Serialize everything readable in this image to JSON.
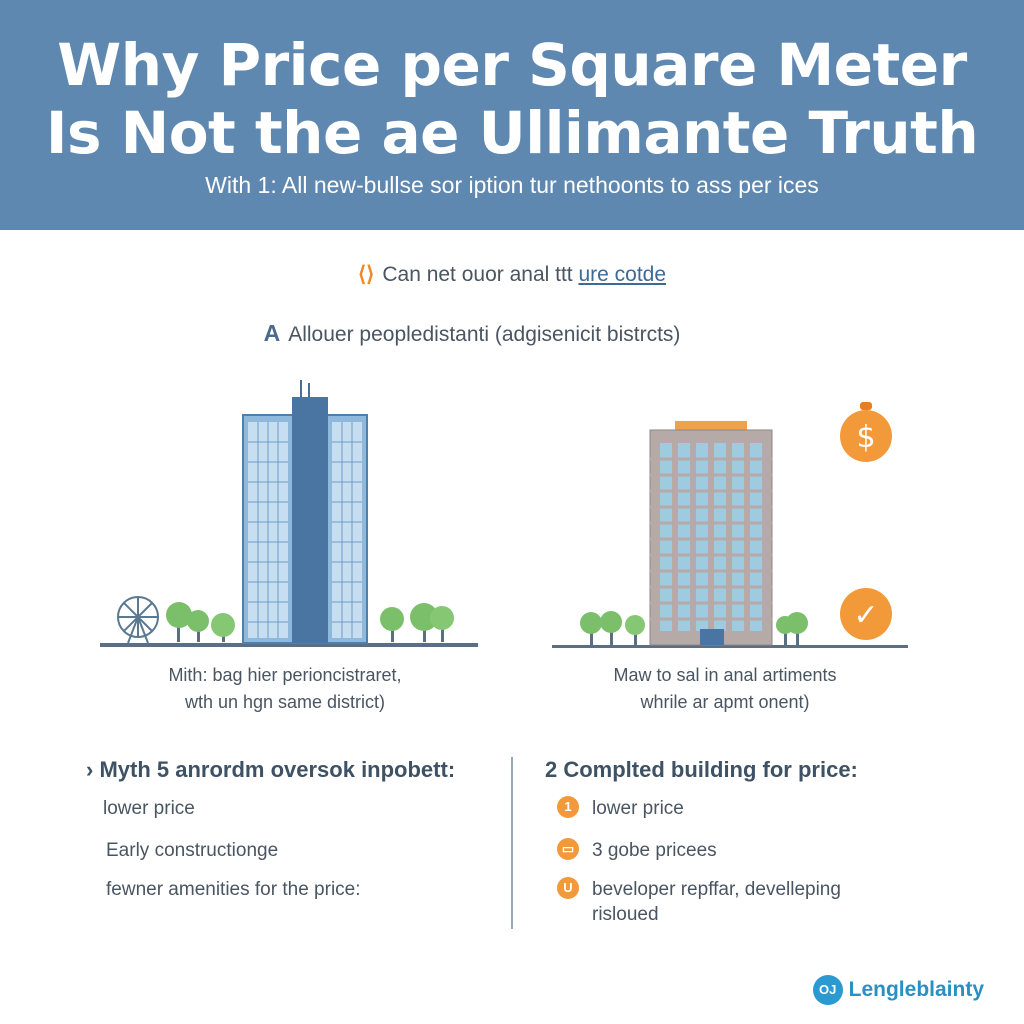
{
  "header": {
    "title_line1": "Why Price per Square Meter",
    "title_line2": "Is Not the ae Ullimante Truth",
    "subtitle": "With 1: All new-bullse sor iption tur nethoonts to ass per ices"
  },
  "notes": {
    "note1_icon": "⟨⟩",
    "note1_text": "Can net ouor anal ttt ",
    "note1_link": "ure cotde",
    "note2_lead": "A",
    "note2_text": "Allouer peopledistanti (adgisenicit bistrcts)"
  },
  "captions": {
    "left_line1": "Mith: bag hier perioncistraret,",
    "left_line2": "wth un hgn same district)",
    "right_line1": "Maw to sal in anal artiments",
    "right_line2": "whrile ar apmt onent)"
  },
  "left_column": {
    "title": "› Myth 5 anrordm oversok inpobett:",
    "items": [
      "lower price",
      "Early constructionge",
      "fewner amenities for the price:"
    ]
  },
  "right_column": {
    "title": "2 Complted building for price:",
    "items": [
      {
        "badge": "1",
        "text": "lower price"
      },
      {
        "badge": "▭",
        "text": "3 gobe pricees"
      },
      {
        "badge": "U",
        "text_line1": "beveloper repffar, develleping",
        "text_line2": "risloued"
      }
    ]
  },
  "icons": {
    "dollar_symbol": "$",
    "check_symbol": "✓"
  },
  "brand": {
    "mark": "OJ",
    "name": "Lengleblainty"
  },
  "colors": {
    "banner": "#5f88b0",
    "accent_orange": "#f29a3a",
    "tower_blue": "#6a9ecb",
    "tree_green": "#7cbf6a"
  }
}
